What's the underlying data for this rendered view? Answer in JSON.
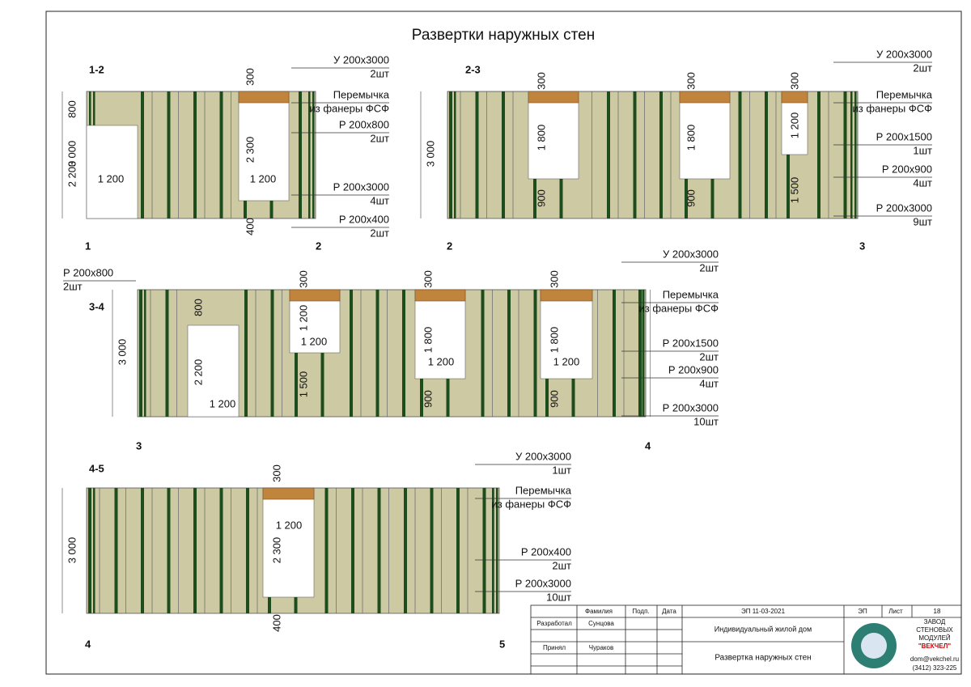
{
  "title": "Развертки наружных стен",
  "walls": [
    {
      "name": "1-2",
      "ends": [
        "1",
        "2"
      ],
      "dims": [
        "3 000",
        "800",
        "2 200",
        "1 200",
        "300",
        "2 300",
        "1 200",
        "400"
      ],
      "callouts": [
        [
          "У 200х3000",
          "2шт"
        ],
        [
          "Перемычка",
          "из фанеры ФСФ"
        ],
        [
          "Р 200х800",
          "2шт"
        ],
        [
          "Р 200х3000",
          "4шт"
        ],
        [
          "Р 200х400",
          "2шт"
        ]
      ]
    },
    {
      "name": "2-3",
      "ends": [
        "2",
        "3"
      ],
      "dims": [
        "3 000",
        "300",
        "1 800",
        "900",
        "300",
        "1 800",
        "900",
        "300",
        "1 200",
        "1 500"
      ],
      "callouts": [
        [
          "У 200х3000",
          "2шт"
        ],
        [
          "Перемычка",
          "из фанеры ФСФ"
        ],
        [
          "Р 200х1500",
          "1шт"
        ],
        [
          "Р 200х900",
          "4шт"
        ],
        [
          "Р 200х3000",
          "9шт"
        ]
      ]
    },
    {
      "name": "3-4",
      "ends": [
        "3",
        "4"
      ],
      "dims": [
        "3 000",
        "800",
        "2 200",
        "1 200",
        "300",
        "1 200",
        "1 200",
        "1 500",
        "300",
        "1 800",
        "1 200",
        "900",
        "300",
        "1 800",
        "1 200",
        "900"
      ],
      "callouts": [
        [
          "Р 200х800",
          "2шт"
        ],
        [
          "У 200х3000",
          "2шт"
        ],
        [
          "Перемычка",
          "из фанеры ФСФ"
        ],
        [
          "Р 200х1500",
          "2шт"
        ],
        [
          "Р 200х900",
          "4шт"
        ],
        [
          "Р 200х3000",
          "10шт"
        ]
      ]
    },
    {
      "name": "4-5",
      "ends": [
        "4",
        "5"
      ],
      "dims": [
        "3 000",
        "300",
        "1 200",
        "2 300",
        "400"
      ],
      "callouts": [
        [
          "У 200х3000",
          "1шт"
        ],
        [
          "Перемычка",
          "из фанеры ФСФ"
        ],
        [
          "Р 200х400",
          "2шт"
        ],
        [
          "Р 200х3000",
          "10шт"
        ]
      ]
    }
  ],
  "stamp": {
    "header": [
      "Фамилия",
      "Подп.",
      "Дата",
      "ЭП 11-03-2021",
      "ЭП",
      "Лист",
      "18"
    ],
    "rows": [
      [
        "Разработал",
        "Сунцова"
      ],
      [
        "Принял",
        "Чураков"
      ]
    ],
    "project": "Индивидуальный жилой дом",
    "sheet_title": "Развертка наружных стен",
    "company": [
      "ЗАВОД",
      "СТЕНОВЫХ",
      "МОДУЛЕЙ",
      "\"ВЕКЧЕЛ\""
    ],
    "email": "dom@vekchel.ru",
    "phone": "(3412) 323-225"
  }
}
